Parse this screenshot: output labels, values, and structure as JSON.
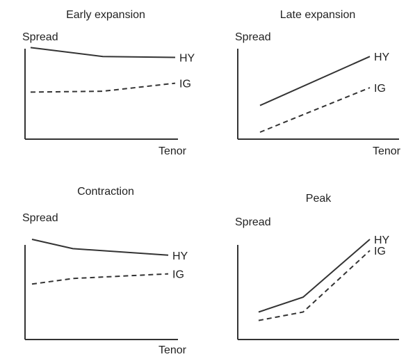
{
  "chart_data": [
    {
      "type": "line",
      "title": "Early expansion",
      "ylabel": "Spread",
      "xlabel": "Tenor",
      "x": [
        0,
        0.5,
        1
      ],
      "series": [
        {
          "name": "HY",
          "style": "solid",
          "values": [
            0.95,
            0.85,
            0.84
          ]
        },
        {
          "name": "IG",
          "style": "dashed",
          "values": [
            0.45,
            0.46,
            0.55
          ]
        }
      ],
      "ylim": [
        0,
        1
      ]
    },
    {
      "type": "line",
      "title": "Late expansion",
      "ylabel": "Spread",
      "xlabel": "Tenor",
      "x": [
        0,
        1
      ],
      "series": [
        {
          "name": "HY",
          "style": "solid",
          "values": [
            0.3,
            0.85
          ]
        },
        {
          "name": "IG",
          "style": "dashed",
          "values": [
            0.0,
            0.5
          ]
        }
      ],
      "ylim": [
        0,
        1
      ]
    },
    {
      "type": "line",
      "title": "Contraction",
      "ylabel": "Spread",
      "xlabel": "Tenor",
      "x": [
        0,
        0.3,
        1
      ],
      "series": [
        {
          "name": "HY",
          "style": "solid",
          "values": [
            1.0,
            0.9,
            0.83
          ]
        },
        {
          "name": "IG",
          "style": "dashed",
          "values": [
            0.52,
            0.58,
            0.63
          ]
        }
      ],
      "ylim": [
        0,
        1
      ]
    },
    {
      "type": "line",
      "title": "Peak",
      "ylabel": "Spread",
      "xlabel": "",
      "x": [
        0,
        0.4,
        1
      ],
      "series": [
        {
          "name": "HY",
          "style": "solid",
          "values": [
            0.22,
            0.38,
            1.0
          ]
        },
        {
          "name": "IG",
          "style": "dashed",
          "values": [
            0.13,
            0.22,
            0.88
          ]
        }
      ],
      "ylim": [
        0,
        1
      ]
    }
  ]
}
